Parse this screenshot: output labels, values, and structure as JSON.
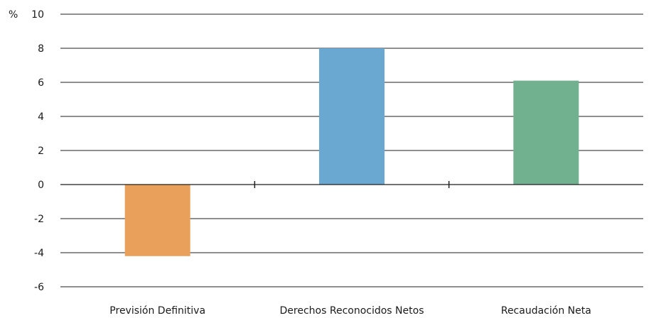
{
  "chart_data": {
    "type": "bar",
    "title": "",
    "xlabel": "",
    "ylabel": "%",
    "ylim": [
      -6,
      10
    ],
    "yticks": [
      10,
      8,
      6,
      4,
      2,
      0,
      -2,
      -4,
      -6
    ],
    "grid": true,
    "categories": [
      "Previsión Definitiva",
      "Derechos Reconocidos Netos",
      "Recaudación Neta"
    ],
    "values": [
      -4.2,
      8.0,
      6.1
    ],
    "colors": [
      "#e9a05a",
      "#6aa8d2",
      "#72b190"
    ]
  }
}
